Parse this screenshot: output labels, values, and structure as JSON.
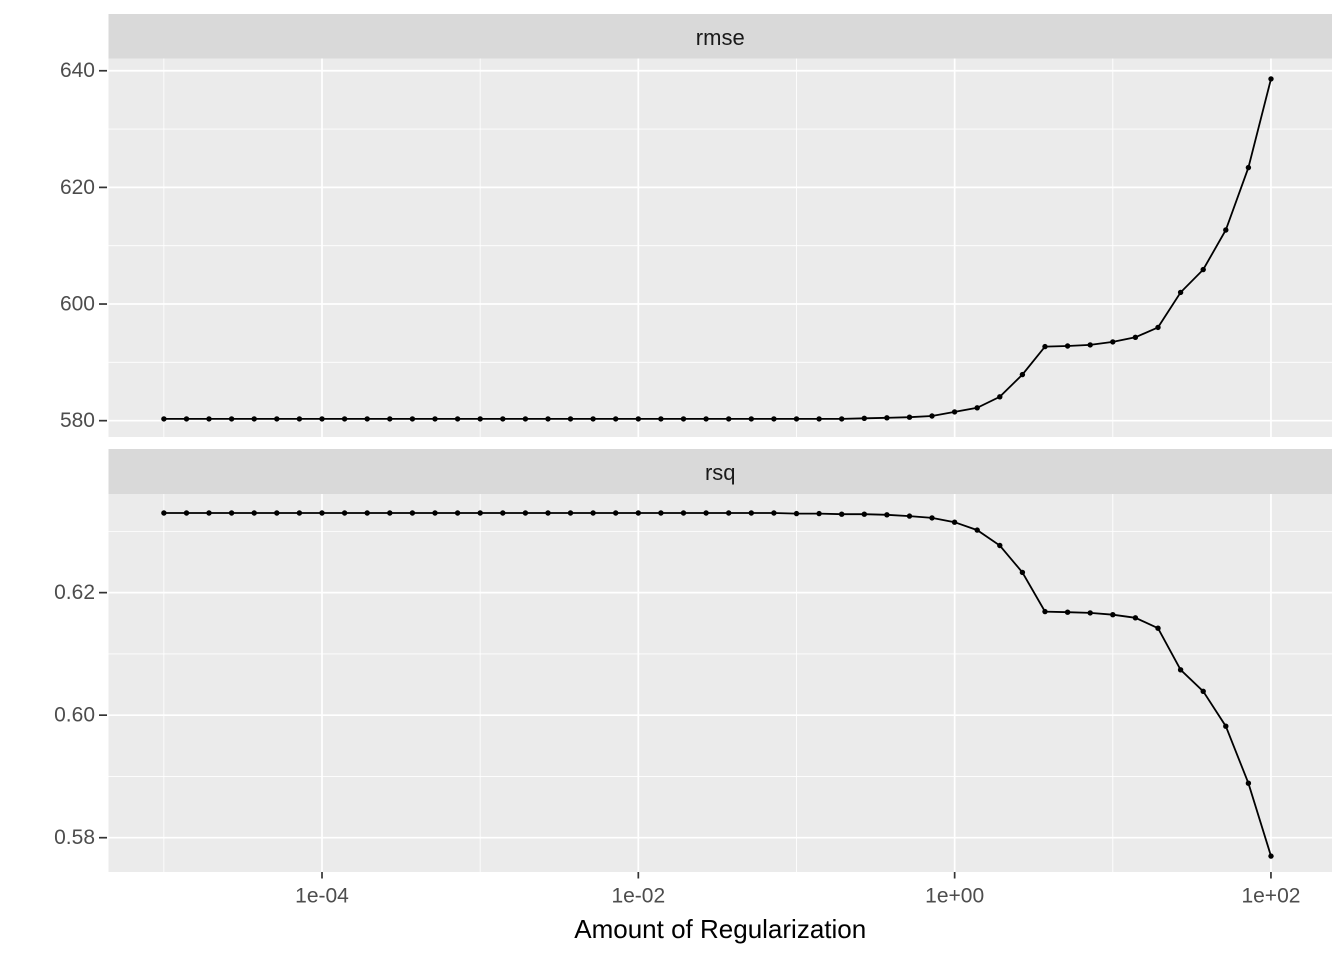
{
  "figure": {
    "background": "#FFFFFF",
    "panel_bg": "#EBEBEB",
    "strip_bg": "#D9D9D9",
    "grid_color": "#FFFFFF",
    "data_color": "#000000",
    "tick_mark_color": "#333333",
    "tick_label_color": "#4D4D4D",
    "strip_text_color": "#1A1A1A",
    "axis_title_color": "#000000"
  },
  "chart_data": {
    "type": "line",
    "description": "Two vertically stacked facets (rmse, rsq) sharing a log10 x axis of regularization penalty; 50 points per series with point markers",
    "x_axis": {
      "title": "Amount of Regularization",
      "scale": "log10",
      "major_ticks": [
        {
          "log10": -4,
          "label": "1e-04"
        },
        {
          "log10": -2,
          "label": "1e-02"
        },
        {
          "log10": 0,
          "label": "1e+00"
        },
        {
          "log10": 2,
          "label": "1e+02"
        }
      ],
      "minor_gridlines_log10": [
        -5,
        -3,
        -1,
        1
      ],
      "xlim_log10": [
        -5.35,
        2.386
      ]
    },
    "log10_penalty": [
      -5,
      -4.8571,
      -4.7143,
      -4.5714,
      -4.4286,
      -4.2857,
      -4.1429,
      -4,
      -3.8571,
      -3.7143,
      -3.5714,
      -3.4286,
      -3.2857,
      -3.1429,
      -3,
      -2.8571,
      -2.7143,
      -2.5714,
      -2.4286,
      -2.2857,
      -2.1429,
      -2,
      -1.8571,
      -1.7143,
      -1.5714,
      -1.4286,
      -1.2857,
      -1.1429,
      -1,
      -0.8571,
      -0.7143,
      -0.5714,
      -0.4286,
      -0.2857,
      -0.1429,
      0,
      0.1429,
      0.2857,
      0.4286,
      0.5714,
      0.7143,
      0.8571,
      1,
      1.1429,
      1.2857,
      1.4286,
      1.5714,
      1.7143,
      1.8571,
      2
    ],
    "facets": [
      {
        "label": "rmse",
        "ylim": [
          577.2,
          642.1
        ],
        "y_major_ticks": [
          {
            "v": 580,
            "label": "580"
          },
          {
            "v": 600,
            "label": "600"
          },
          {
            "v": 620,
            "label": "620"
          },
          {
            "v": 640,
            "label": "640"
          }
        ],
        "y_minor_gridlines": [
          590,
          610,
          630
        ],
        "values": [
          580.3,
          580.3,
          580.3,
          580.3,
          580.3,
          580.3,
          580.3,
          580.3,
          580.3,
          580.3,
          580.3,
          580.3,
          580.3,
          580.3,
          580.3,
          580.3,
          580.3,
          580.3,
          580.3,
          580.3,
          580.3,
          580.3,
          580.3,
          580.3,
          580.3,
          580.3,
          580.3,
          580.3,
          580.3,
          580.3,
          580.3,
          580.4,
          580.5,
          580.6,
          580.8,
          581.5,
          582.2,
          584.1,
          587.9,
          592.7,
          592.8,
          593.0,
          593.5,
          594.3,
          596.0,
          602.0,
          605.9,
          612.7,
          623.4,
          638.6
        ]
      },
      {
        "label": "rsq",
        "ylim": [
          0.5744,
          0.6361
        ],
        "y_major_ticks": [
          {
            "v": 0.58,
            "label": "0.58"
          },
          {
            "v": 0.6,
            "label": "0.60"
          },
          {
            "v": 0.62,
            "label": "0.62"
          }
        ],
        "y_minor_gridlines": [
          0.59,
          0.61,
          0.63
        ],
        "values": [
          0.633,
          0.633,
          0.633,
          0.633,
          0.633,
          0.633,
          0.633,
          0.633,
          0.633,
          0.633,
          0.633,
          0.633,
          0.633,
          0.633,
          0.633,
          0.633,
          0.633,
          0.633,
          0.633,
          0.633,
          0.633,
          0.633,
          0.633,
          0.633,
          0.633,
          0.633,
          0.633,
          0.633,
          0.6329,
          0.6329,
          0.6328,
          0.6328,
          0.6327,
          0.6325,
          0.6322,
          0.6315,
          0.6302,
          0.6277,
          0.6233,
          0.6169,
          0.6168,
          0.6167,
          0.6164,
          0.6159,
          0.6142,
          0.6074,
          0.6039,
          0.5982,
          0.5889,
          0.577
        ]
      }
    ]
  }
}
